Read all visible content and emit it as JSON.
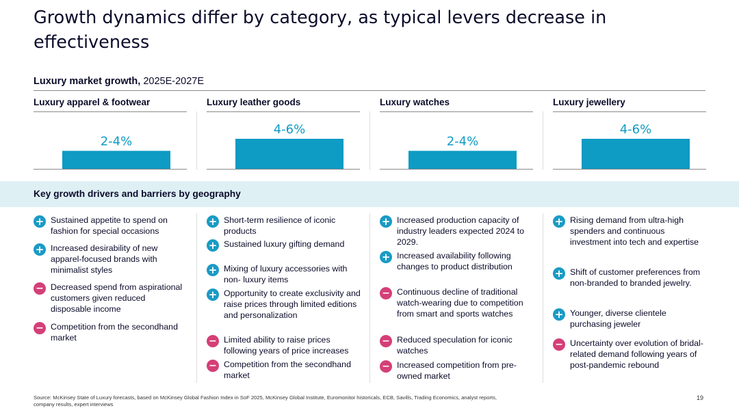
{
  "title": "Growth dynamics differ by category, as typical levers decrease in effectiveness",
  "subtitle": {
    "bold": "Luxury market growth,",
    "rest": "2025E-2027E"
  },
  "chart_data": {
    "type": "bar",
    "title": "Luxury market growth, 2025E-2027E",
    "categories": [
      "Luxury apparel & footwear",
      "Luxury leather goods",
      "Luxury watches",
      "Luxury jewellery"
    ],
    "values": [
      3,
      5,
      3,
      5
    ],
    "data_labels": [
      "2-4%",
      "4-6%",
      "2-4%",
      "4-6%"
    ],
    "ylabel": "",
    "xlabel": "",
    "bar_color": "#0e9bc4",
    "label_color": "#0e9bc4"
  },
  "section_title": "Key growth drivers and barriers by geography",
  "columns": [
    {
      "items": [
        {
          "type": "plus",
          "text": "Sustained appetite to spend on fashion for special occasions"
        },
        {
          "type": "plus",
          "text": "Increased desirability of new apparel-focused brands with minimalist styles"
        },
        {
          "type": "minus",
          "text": "Decreased spend from aspirational customers given reduced disposable income"
        },
        {
          "type": "minus",
          "text": "Competition from the secondhand market"
        }
      ]
    },
    {
      "items": [
        {
          "type": "plus",
          "text": "Short-term resilience of iconic products"
        },
        {
          "type": "plus",
          "text": "Sustained luxury gifting demand"
        },
        {
          "type": "plus",
          "text": "Mixing of luxury accessories with non- luxury items"
        },
        {
          "type": "plus",
          "text": "Opportunity to create exclusivity and raise prices through limited editions and personalization"
        },
        {
          "type": "minus",
          "text": "Limited ability to raise prices following years of price increases"
        },
        {
          "type": "minus",
          "text": "Competition from the secondhand market"
        }
      ]
    },
    {
      "items": [
        {
          "type": "plus",
          "text": "Increased production capacity of industry leaders expected 2024 to 2029."
        },
        {
          "type": "plus",
          "text": "Increased availability following changes to product distribution"
        },
        {
          "type": "minus",
          "text": "Continuous decline of traditional watch-wearing due to competition from smart and sports watches"
        },
        {
          "type": "minus",
          "text": "Reduced speculation for iconic watches"
        },
        {
          "type": "minus",
          "text": "Increased competition from pre-owned market"
        }
      ]
    },
    {
      "items": [
        {
          "type": "plus",
          "text": "Rising demand from ultra-high spenders and continuous investment into tech and expertise"
        },
        {
          "type": "plus",
          "text": "Shift of customer preferences from non-branded to branded jewelry."
        },
        {
          "type": "plus",
          "text": "Younger, diverse clientele purchasing jeweler"
        },
        {
          "type": "minus",
          "text": "Uncertainty over evolution of bridal-related demand following years of post-pandemic rebound"
        }
      ]
    }
  ],
  "source": "Source: McKinsey State of Luxury forecasts, based on McKinsey Global Fashion Index in SoF 2025, McKinsey Global Institute, Euromonitor historicals, ECB, Savills, Trading Economics, analyst reports, company results, expert interviews",
  "page_number": "19"
}
